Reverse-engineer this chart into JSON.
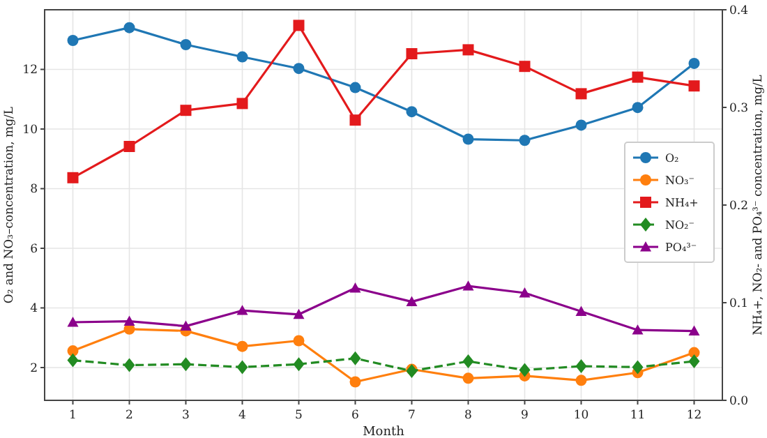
{
  "chart_data": {
    "type": "line",
    "xlabel": "Month",
    "ylabel": "O₂ and NO₃–concentration, mg/L",
    "y2label": "NH₄+, NO₂- and PO₄³⁻ concentration, mg/L",
    "x": [
      1,
      2,
      3,
      4,
      5,
      6,
      7,
      8,
      9,
      10,
      11,
      12
    ],
    "xlim": [
      0.5,
      12.5
    ],
    "xticks": [
      1,
      2,
      3,
      4,
      5,
      6,
      7,
      8,
      9,
      10,
      11,
      12
    ],
    "ylim": [
      0.9,
      14
    ],
    "yticks": [
      2,
      4,
      6,
      8,
      10,
      12
    ],
    "y2lim": [
      0,
      0.4
    ],
    "y2ticks": [
      {
        "value": 0,
        "label": "0.0"
      },
      0.1,
      0.2,
      0.3,
      0.4
    ],
    "grid": true,
    "legend": "right",
    "series": [
      {
        "name": "O₂",
        "color": "#1f77b4",
        "marker": "circle",
        "line_style": "solid",
        "values": [
          12.97,
          13.4,
          12.83,
          12.42,
          12.03,
          11.39,
          10.58,
          9.66,
          9.62,
          10.13,
          10.72,
          12.2
        ]
      },
      {
        "name": "NO₃⁻",
        "color": "#ff7f0e",
        "marker": "circle",
        "line_style": "solid",
        "values": [
          2.56,
          3.29,
          3.23,
          2.71,
          2.9,
          1.52,
          1.94,
          1.64,
          1.72,
          1.57,
          1.83,
          2.5
        ]
      },
      {
        "name": "NH₄+",
        "color": "#e31a1c",
        "marker": "square",
        "line_style": "solid",
        "axis": "y2",
        "values": [
          0.228,
          0.26,
          0.297,
          0.304,
          0.384,
          0.287,
          0.355,
          0.359,
          0.342,
          0.314,
          0.331,
          0.322
        ]
      },
      {
        "name": "NO₂⁻",
        "color": "#228b22",
        "marker": "diamond",
        "line_style": "dashed",
        "axis": "y2",
        "values": [
          0.041,
          0.036,
          0.037,
          0.034,
          0.037,
          0.043,
          0.03,
          0.04,
          0.031,
          0.035,
          0.034,
          0.04
        ]
      },
      {
        "name": "PO₄³⁻",
        "color": "#8b008b",
        "marker": "triangle",
        "line_style": "solid",
        "axis": "y2",
        "values": [
          0.08,
          0.081,
          0.076,
          0.092,
          0.088,
          0.115,
          0.101,
          0.117,
          0.11,
          0.091,
          0.072,
          0.071
        ]
      }
    ]
  }
}
